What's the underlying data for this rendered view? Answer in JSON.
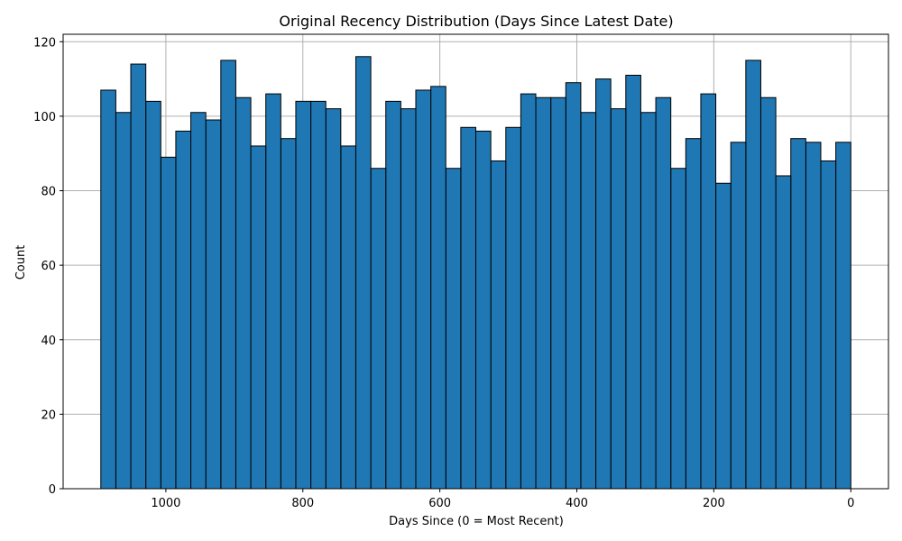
{
  "chart_data": {
    "type": "bar",
    "title": "Original Recency Distribution (Days Since Latest Date)",
    "xlabel": "Days Since (0 = Most Recent)",
    "ylabel": "Count",
    "x_inverted": true,
    "xlim": [
      1150,
      -55
    ],
    "ylim": [
      0,
      122
    ],
    "grid": true,
    "bar_color": "#1f77b4",
    "edge_color": "#000000",
    "x_ticks": [
      1000,
      800,
      600,
      400,
      200,
      0
    ],
    "y_ticks": [
      0,
      20,
      40,
      60,
      80,
      100,
      120
    ],
    "bin_width": 21.9,
    "bin_starts": [
      0,
      21.9,
      43.8,
      65.7,
      87.6,
      109.5,
      131.4,
      153.3,
      175.2,
      197.1,
      219,
      240.9,
      262.8,
      284.7,
      306.6,
      328.5,
      350.4,
      372.3,
      394.2,
      416.1,
      438,
      459.9,
      481.8,
      503.7,
      525.6,
      547.5,
      569.4,
      591.3,
      613.2,
      635.1,
      657,
      678.9,
      700.8,
      722.7,
      744.6,
      766.5,
      788.4,
      810.3,
      832.2,
      854.1,
      876,
      897.9,
      919.8,
      941.7,
      963.6,
      985.5,
      1007.4,
      1029.3,
      1051.2,
      1073.1
    ],
    "values": [
      93,
      88,
      93,
      94,
      84,
      105,
      115,
      93,
      82,
      106,
      94,
      86,
      105,
      101,
      111,
      102,
      110,
      101,
      109,
      105,
      105,
      106,
      97,
      88,
      96,
      97,
      86,
      108,
      107,
      102,
      104,
      86,
      116,
      92,
      102,
      104,
      104,
      94,
      106,
      92,
      105,
      115,
      99,
      101,
      96,
      89,
      104,
      114,
      101,
      107
    ]
  }
}
